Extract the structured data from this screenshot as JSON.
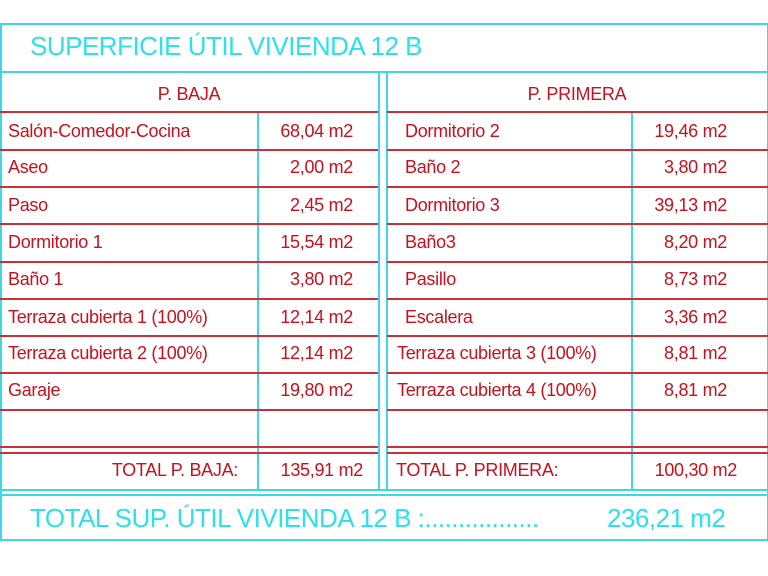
{
  "title": "SUPERFICIE ÚTIL VIVIENDA 12 B",
  "left": {
    "header": "P. BAJA",
    "rows": [
      {
        "name": "Salón-Comedor-Cocina",
        "area": "68,04 m2"
      },
      {
        "name": "Aseo",
        "area": "2,00 m2"
      },
      {
        "name": "Paso",
        "area": "2,45 m2"
      },
      {
        "name": "Dormitorio 1",
        "area": "15,54 m2"
      },
      {
        "name": "Baño 1",
        "area": "3,80 m2"
      },
      {
        "name": "Terraza cubierta 1 (100%)",
        "area": "12,14 m2"
      },
      {
        "name": "Terraza cubierta 2 (100%)",
        "area": "12,14 m2"
      },
      {
        "name": "Garaje",
        "area": "19,80 m2"
      }
    ],
    "total_label": "TOTAL P. BAJA:",
    "total_value": "135,91 m2"
  },
  "right": {
    "header": "P. PRIMERA",
    "rows": [
      {
        "name": "Dormitorio 2",
        "area": "19,46 m2"
      },
      {
        "name": "Baño 2",
        "area": "3,80 m2"
      },
      {
        "name": "Dormitorio 3",
        "area": "39,13 m2"
      },
      {
        "name": "Baño3",
        "area": "8,20 m2"
      },
      {
        "name": "Pasillo",
        "area": "8,73 m2"
      },
      {
        "name": "Escalera",
        "area": "3,36 m2"
      },
      {
        "name": "Terraza cubierta 3 (100%)",
        "area": "8,81 m2"
      },
      {
        "name": "Terraza cubierta 4 (100%)",
        "area": "8,81 m2"
      }
    ],
    "total_label": "TOTAL P. PRIMERA:",
    "total_value": "100,30 m2"
  },
  "grand_total": {
    "label": "TOTAL SUP. ÚTIL VIVIENDA 12 B :.................",
    "value": "236,21 m2"
  },
  "colors": {
    "title": "#2ee0ec",
    "text": "#c8101e",
    "grid_vertical": "#3fd6e6",
    "grid_horizontal": "#c9303a"
  }
}
